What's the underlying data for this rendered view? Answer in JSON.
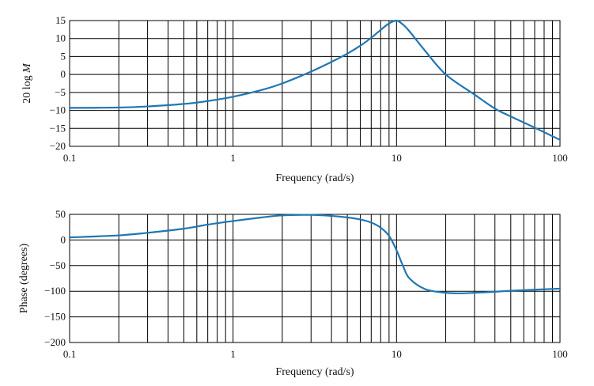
{
  "chart_data": [
    {
      "type": "line",
      "xlabel": "Frequency (rad/s)",
      "ylabel_prefix": "20 log ",
      "ylabel_var": "M",
      "xscale": "log",
      "xlim": [
        0.1,
        100
      ],
      "ylim": [
        -20,
        15
      ],
      "x_ticks": [
        0.1,
        1,
        10,
        100
      ],
      "x_tick_labels": [
        "0.1",
        "1",
        "10",
        "100"
      ],
      "y_ticks": [
        -20,
        -15,
        -10,
        -5,
        0,
        5,
        10,
        15
      ],
      "y_tick_labels": [
        "−20",
        "−15",
        "−10",
        "−5",
        "0",
        "5",
        "10",
        "15"
      ],
      "grid": true,
      "color": "#1f77b4",
      "series": [
        {
          "x": [
            0.1,
            0.2,
            0.3,
            0.5,
            0.7,
            1,
            1.5,
            2,
            3,
            4,
            5,
            6,
            7,
            8,
            9,
            10,
            11,
            12,
            15,
            20,
            30,
            40,
            50,
            70,
            100
          ],
          "y": [
            -9.3,
            -9.2,
            -8.9,
            -8.2,
            -7.4,
            -6.2,
            -4.3,
            -2.5,
            0.8,
            3.5,
            5.8,
            8.0,
            10.2,
            12.4,
            14.2,
            15.0,
            13.8,
            12.0,
            6.5,
            0.0,
            -5.6,
            -9.5,
            -11.7,
            -14.8,
            -18.2
          ]
        }
      ]
    },
    {
      "type": "line",
      "xlabel": "Frequency (rad/s)",
      "ylabel": "Phase (degrees)",
      "xscale": "log",
      "xlim": [
        0.1,
        100
      ],
      "ylim": [
        -200,
        50
      ],
      "x_ticks": [
        0.1,
        1,
        10,
        100
      ],
      "x_tick_labels": [
        "0.1",
        "1",
        "10",
        "100"
      ],
      "y_ticks": [
        -200,
        -150,
        -100,
        -50,
        0,
        50
      ],
      "y_tick_labels": [
        "−200",
        "−150",
        "−100",
        "−50",
        "0",
        "50"
      ],
      "grid": true,
      "color": "#1f77b4",
      "series": [
        {
          "x": [
            0.1,
            0.2,
            0.3,
            0.5,
            0.7,
            1,
            1.5,
            2,
            3,
            4,
            5,
            6,
            7,
            8,
            9,
            10,
            11,
            12,
            15,
            20,
            25,
            30,
            40,
            50,
            70,
            100
          ],
          "y": [
            5,
            9,
            14,
            22,
            30,
            37,
            44,
            48,
            49,
            47,
            44,
            40,
            34,
            24,
            8,
            -20,
            -52,
            -75,
            -96,
            -103,
            -104,
            -103,
            -101,
            -99,
            -97,
            -95
          ]
        }
      ]
    }
  ]
}
